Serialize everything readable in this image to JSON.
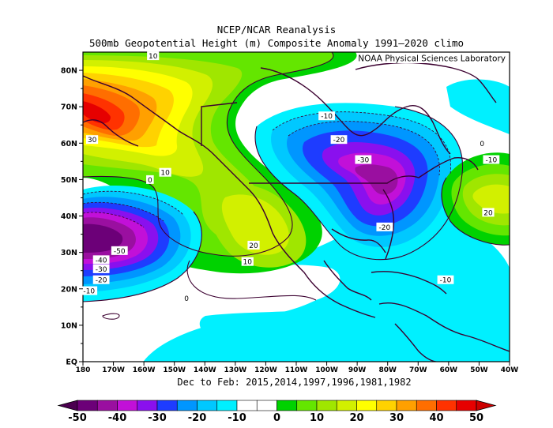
{
  "titles": {
    "line1": "NCEP/NCAR Reanalysis",
    "line2": "500mb Geopotential Height (m) Composite Anomaly 1991—2020 climo",
    "credit": "NOAA Physical Sciences Laboratory",
    "period": "Dec to Feb: 2015,2014,1997,1996,1981,1982"
  },
  "map": {
    "lat_labels": [
      "80N",
      "70N",
      "60N",
      "50N",
      "40N",
      "30N",
      "20N",
      "10N",
      "EQ"
    ],
    "lon_labels": [
      "180",
      "170W",
      "160W",
      "150W",
      "140W",
      "130W",
      "120W",
      "110W",
      "100W",
      "90W",
      "80W",
      "70W",
      "60W",
      "50W",
      "40W"
    ],
    "contour_labels": [
      {
        "text": "10",
        "lon": -157,
        "lat": 84
      },
      {
        "text": "30",
        "lon": -177,
        "lat": 61
      },
      {
        "text": "10",
        "lon": -153,
        "lat": 52
      },
      {
        "text": "0",
        "lon": -158,
        "lat": 50
      },
      {
        "text": "-50",
        "lon": -168,
        "lat": 30.5
      },
      {
        "text": "-40",
        "lon": -174,
        "lat": 28
      },
      {
        "text": "-30",
        "lon": -174,
        "lat": 25.5
      },
      {
        "text": "-20",
        "lon": -174,
        "lat": 22.5
      },
      {
        "text": "-10",
        "lon": -178,
        "lat": 19.5
      },
      {
        "text": "0",
        "lon": -146,
        "lat": 17.5
      },
      {
        "text": "20",
        "lon": -124,
        "lat": 32
      },
      {
        "text": "10",
        "lon": -126,
        "lat": 27.5
      },
      {
        "text": "-10",
        "lon": -100,
        "lat": 67.5
      },
      {
        "text": "-20",
        "lon": -96,
        "lat": 61
      },
      {
        "text": "-30",
        "lon": -88,
        "lat": 55.5
      },
      {
        "text": "-20",
        "lon": -81,
        "lat": 37
      },
      {
        "text": "-10",
        "lon": -61,
        "lat": 22.5
      },
      {
        "text": "0",
        "lon": -49,
        "lat": 60
      },
      {
        "text": "-10",
        "lon": -46,
        "lat": 55.5
      },
      {
        "text": "20",
        "lon": -47,
        "lat": 41
      }
    ]
  },
  "colorbar": {
    "labels": [
      "-50",
      "-40",
      "-30",
      "-20",
      "-10",
      "0",
      "10",
      "20",
      "30",
      "40",
      "50"
    ],
    "colors": [
      "#6c0078",
      "#9a0fa0",
      "#c210d8",
      "#8a10ee",
      "#1e3cff",
      "#0096ff",
      "#00c8ff",
      "#00f0ff",
      "#ffffff",
      "#ffffff",
      "#00d200",
      "#64e600",
      "#a0e600",
      "#d2f000",
      "#ffff00",
      "#ffd200",
      "#ffa000",
      "#ff6e00",
      "#ff3200",
      "#e60000"
    ],
    "under_color": "#4b0050",
    "over_color": "#cc0000"
  }
}
